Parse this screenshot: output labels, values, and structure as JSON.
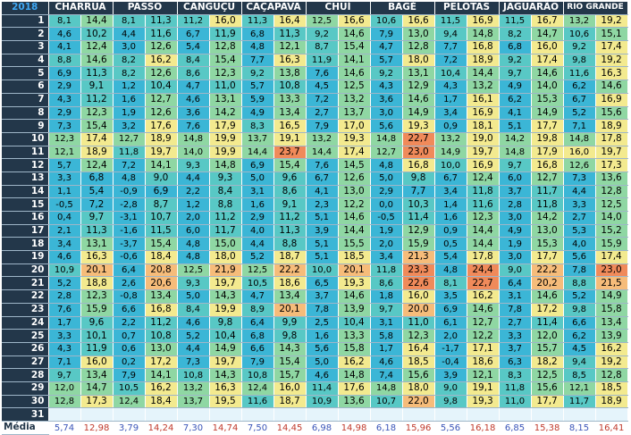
{
  "year": "2018",
  "avg_label": "Média",
  "cities": [
    "CHARRUA",
    "PASSO",
    "CANGUÇU",
    "CAÇAPAVA",
    "CHUÍ",
    "BAGÉ",
    "PELOTAS",
    "JAGUARÃO",
    "RIO GRANDE"
  ],
  "rows": [
    {
      "day": "1",
      "v": [
        "8,1",
        "14,4",
        "8,1",
        "11,3",
        "11,2",
        "16,0",
        "11,3",
        "16,4",
        "12,5",
        "16,6",
        "10,6",
        "16,6",
        "11,5",
        "16,9",
        "11,5",
        "16,7",
        "13,2",
        "19,2"
      ]
    },
    {
      "day": "2",
      "v": [
        "4,6",
        "10,2",
        "4,4",
        "11,6",
        "6,7",
        "11,9",
        "6,8",
        "11,3",
        "9,2",
        "14,6",
        "7,9",
        "13,0",
        "9,4",
        "14,8",
        "8,2",
        "14,7",
        "10,6",
        "15,1"
      ]
    },
    {
      "day": "3",
      "v": [
        "4,1",
        "12,4",
        "3,0",
        "12,6",
        "5,4",
        "12,8",
        "4,8",
        "12,1",
        "8,7",
        "15,4",
        "4,7",
        "12,8",
        "7,7",
        "16,8",
        "6,8",
        "16,0",
        "9,2",
        "17,4"
      ]
    },
    {
      "day": "4",
      "v": [
        "8,8",
        "14,6",
        "8,2",
        "16,2",
        "8,4",
        "15,4",
        "7,7",
        "16,3",
        "11,9",
        "14,1",
        "5,7",
        "18,0",
        "7,2",
        "18,9",
        "9,2",
        "17,4",
        "9,8",
        "19,2"
      ]
    },
    {
      "day": "5",
      "v": [
        "6,9",
        "11,3",
        "8,2",
        "12,6",
        "8,6",
        "12,3",
        "9,2",
        "13,8",
        "7,6",
        "14,6",
        "9,2",
        "13,1",
        "10,4",
        "14,4",
        "9,7",
        "14,6",
        "11,6",
        "16,3"
      ]
    },
    {
      "day": "6",
      "v": [
        "2,9",
        "9,1",
        "1,2",
        "10,4",
        "4,7",
        "11,0",
        "5,7",
        "10,8",
        "4,5",
        "12,5",
        "4,3",
        "12,9",
        "4,3",
        "13,2",
        "4,9",
        "14,0",
        "6,2",
        "14,6"
      ]
    },
    {
      "day": "7",
      "v": [
        "4,3",
        "11,2",
        "1,6",
        "12,7",
        "4,6",
        "13,1",
        "5,9",
        "13,3",
        "7,2",
        "13,2",
        "3,6",
        "14,6",
        "1,7",
        "16,1",
        "6,2",
        "15,3",
        "6,7",
        "16,9"
      ]
    },
    {
      "day": "8",
      "v": [
        "2,9",
        "12,3",
        "1,9",
        "12,6",
        "3,6",
        "14,2",
        "4,9",
        "13,4",
        "2,7",
        "13,7",
        "3,0",
        "14,9",
        "3,4",
        "16,9",
        "4,1",
        "14,9",
        "5,2",
        "15,6"
      ]
    },
    {
      "day": "9",
      "v": [
        "7,3",
        "15,4",
        "3,2",
        "17,6",
        "7,6",
        "17,9",
        "8,3",
        "16,5",
        "7,9",
        "17,0",
        "5,6",
        "19,3",
        "0,9",
        "18,1",
        "5,1",
        "17,7",
        "7,1",
        "18,9"
      ]
    },
    {
      "day": "10",
      "v": [
        "12,3",
        "17,4",
        "12,7",
        "18,9",
        "14,8",
        "19,9",
        "13,7",
        "19,1",
        "13,2",
        "19,3",
        "14,8",
        "22,7",
        "13,2",
        "19,0",
        "14,2",
        "19,8",
        "14,8",
        "17,8"
      ]
    },
    {
      "day": "11",
      "v": [
        "12,1",
        "18,9",
        "11,8",
        "19,7",
        "14,0",
        "19,9",
        "14,4",
        "23,7",
        "14,4",
        "17,4",
        "12,7",
        "23,0",
        "14,9",
        "19,7",
        "14,8",
        "17,9",
        "16,0",
        "19,7"
      ]
    },
    {
      "day": "12",
      "v": [
        "5,7",
        "12,4",
        "7,2",
        "14,1",
        "9,3",
        "14,8",
        "6,9",
        "15,4",
        "7,6",
        "14,5",
        "4,8",
        "16,8",
        "10,0",
        "16,9",
        "9,7",
        "16,8",
        "12,6",
        "17,3"
      ]
    },
    {
      "day": "13",
      "v": [
        "3,3",
        "6,8",
        "4,8",
        "9,0",
        "4,4",
        "9,3",
        "5,0",
        "9,6",
        "6,7",
        "12,6",
        "5,0",
        "9,8",
        "6,7",
        "12,4",
        "6,0",
        "12,7",
        "7,3",
        "13,6"
      ]
    },
    {
      "day": "14",
      "v": [
        "1,1",
        "5,4",
        "-0,9",
        "6,9",
        "2,2",
        "8,4",
        "3,1",
        "8,6",
        "4,1",
        "13,0",
        "2,9",
        "7,7",
        "3,4",
        "11,8",
        "3,7",
        "11,7",
        "4,4",
        "12,8"
      ]
    },
    {
      "day": "15",
      "v": [
        "-0,5",
        "7,2",
        "-2,8",
        "8,7",
        "1,2",
        "8,8",
        "1,6",
        "9,1",
        "2,3",
        "12,2",
        "0,0",
        "10,3",
        "1,4",
        "11,6",
        "2,8",
        "11,8",
        "3,3",
        "12,5"
      ]
    },
    {
      "day": "16",
      "v": [
        "0,4",
        "9,7",
        "-3,1",
        "10,7",
        "2,0",
        "11,2",
        "2,9",
        "11,2",
        "5,1",
        "14,6",
        "-0,5",
        "11,4",
        "1,6",
        "12,3",
        "3,0",
        "14,2",
        "2,7",
        "14,0"
      ]
    },
    {
      "day": "17",
      "v": [
        "2,1",
        "11,3",
        "-1,6",
        "11,5",
        "6,0",
        "11,7",
        "4,0",
        "11,3",
        "3,9",
        "14,4",
        "1,9",
        "12,9",
        "0,9",
        "14,4",
        "4,9",
        "13,0",
        "5,3",
        "15,2"
      ]
    },
    {
      "day": "18",
      "v": [
        "3,4",
        "13,1",
        "-3,7",
        "15,4",
        "4,8",
        "15,0",
        "4,4",
        "8,8",
        "5,1",
        "15,5",
        "2,0",
        "15,9",
        "0,5",
        "14,4",
        "1,9",
        "15,3",
        "4,0",
        "15,9"
      ]
    },
    {
      "day": "19",
      "v": [
        "4,6",
        "16,3",
        "-0,6",
        "18,4",
        "4,8",
        "18,0",
        "5,2",
        "18,7",
        "5,1",
        "18,5",
        "3,4",
        "21,3",
        "5,4",
        "17,8",
        "3,0",
        "17,7",
        "5,6",
        "17,4"
      ]
    },
    {
      "day": "20",
      "v": [
        "10,9",
        "20,1",
        "6,4",
        "20,8",
        "12,5",
        "21,9",
        "12,5",
        "22,2",
        "10,0",
        "20,1",
        "11,8",
        "23,3",
        "4,8",
        "24,4",
        "9,0",
        "22,2",
        "7,8",
        "23,0"
      ]
    },
    {
      "day": "21",
      "v": [
        "5,2",
        "18,8",
        "2,6",
        "20,6",
        "9,3",
        "19,7",
        "10,5",
        "18,6",
        "6,5",
        "19,3",
        "8,6",
        "22,6",
        "8,1",
        "22,7",
        "6,4",
        "20,2",
        "8,8",
        "21,5"
      ]
    },
    {
      "day": "22",
      "v": [
        "2,8",
        "12,3",
        "-0,8",
        "13,4",
        "5,0",
        "14,3",
        "4,7",
        "13,4",
        "3,7",
        "14,6",
        "1,8",
        "16,0",
        "3,5",
        "16,2",
        "3,1",
        "14,6",
        "5,2",
        "14,9"
      ]
    },
    {
      "day": "23",
      "v": [
        "7,6",
        "15,9",
        "6,6",
        "16,8",
        "8,4",
        "19,9",
        "8,9",
        "20,1",
        "7,8",
        "13,9",
        "9,7",
        "20,0",
        "6,9",
        "14,6",
        "7,8",
        "17,2",
        "9,8",
        "15,8"
      ]
    },
    {
      "day": "24",
      "v": [
        "1,7",
        "9,6",
        "2,2",
        "11,2",
        "4,6",
        "9,8",
        "6,4",
        "9,9",
        "2,5",
        "10,4",
        "3,1",
        "11,0",
        "6,1",
        "12,7",
        "2,7",
        "11,4",
        "6,6",
        "13,4"
      ]
    },
    {
      "day": "25",
      "v": [
        "3,3",
        "10,1",
        "0,7",
        "10,8",
        "5,2",
        "10,4",
        "6,8",
        "9,8",
        "1,6",
        "13,3",
        "5,8",
        "12,3",
        "2,0",
        "12,2",
        "3,3",
        "12,0",
        "6,2",
        "13,9"
      ]
    },
    {
      "day": "26",
      "v": [
        "4,3",
        "11,9",
        "0,6",
        "13,0",
        "4,4",
        "14,9",
        "6,6",
        "14,3",
        "5,6",
        "15,8",
        "1,7",
        "16,4",
        "-1,7",
        "17,1",
        "3,7",
        "15,7",
        "4,5",
        "16,2"
      ]
    },
    {
      "day": "27",
      "v": [
        "7,1",
        "16,0",
        "0,2",
        "17,2",
        "7,3",
        "19,7",
        "7,9",
        "15,4",
        "5,0",
        "16,2",
        "4,6",
        "18,5",
        "-0,4",
        "18,6",
        "6,3",
        "18,2",
        "9,4",
        "19,2"
      ]
    },
    {
      "day": "28",
      "v": [
        "9,7",
        "13,4",
        "7,9",
        "14,1",
        "10,8",
        "14,3",
        "10,8",
        "15,7",
        "4,6",
        "14,8",
        "7,4",
        "15,6",
        "3,9",
        "12,1",
        "8,3",
        "12,5",
        "8,5",
        "12,8"
      ]
    },
    {
      "day": "29",
      "v": [
        "12,0",
        "14,7",
        "10,5",
        "16,2",
        "13,2",
        "16,3",
        "12,4",
        "16,0",
        "11,4",
        "17,6",
        "14,8",
        "18,0",
        "9,0",
        "19,1",
        "11,8",
        "15,6",
        "12,1",
        "18,5"
      ]
    },
    {
      "day": "30",
      "v": [
        "12,8",
        "17,3",
        "12,4",
        "18,4",
        "13,7",
        "19,5",
        "11,6",
        "18,7",
        "10,9",
        "13,6",
        "10,7",
        "22,0",
        "9,8",
        "19,3",
        "11,0",
        "17,7",
        "11,7",
        "18,9"
      ]
    },
    {
      "day": "31",
      "v": [
        "",
        "",
        "",
        "",
        "",
        "",
        "",
        "",
        "",
        "",
        "",
        "",
        "",
        "",
        "",
        "",
        "",
        ""
      ]
    }
  ],
  "averages": [
    "5,74",
    "12,98",
    "3,79",
    "14,24",
    "7,30",
    "14,74",
    "7,50",
    "14,45",
    "6,98",
    "14,98",
    "6,18",
    "15,96",
    "5,56",
    "16,18",
    "6,85",
    "15,38",
    "8,15",
    "16,41"
  ]
}
